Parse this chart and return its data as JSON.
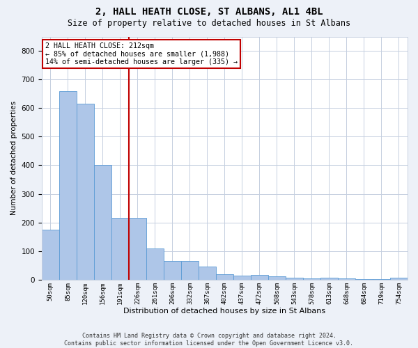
{
  "title": "2, HALL HEATH CLOSE, ST ALBANS, AL1 4BL",
  "subtitle": "Size of property relative to detached houses in St Albans",
  "xlabel": "Distribution of detached houses by size in St Albans",
  "ylabel": "Number of detached properties",
  "categories": [
    "50sqm",
    "85sqm",
    "120sqm",
    "156sqm",
    "191sqm",
    "226sqm",
    "261sqm",
    "296sqm",
    "332sqm",
    "367sqm",
    "402sqm",
    "437sqm",
    "472sqm",
    "508sqm",
    "543sqm",
    "578sqm",
    "613sqm",
    "648sqm",
    "684sqm",
    "719sqm",
    "754sqm"
  ],
  "values": [
    175,
    660,
    615,
    400,
    217,
    217,
    110,
    65,
    65,
    45,
    20,
    15,
    18,
    13,
    8,
    5,
    8,
    5,
    2,
    2,
    6
  ],
  "bar_color": "#aec6e8",
  "bar_edge_color": "#5b9bd5",
  "vline_x": 4.5,
  "vline_color": "#c00000",
  "annotation_text": "2 HALL HEATH CLOSE: 212sqm\n← 85% of detached houses are smaller (1,988)\n14% of semi-detached houses are larger (335) →",
  "annotation_box_edgecolor": "#c00000",
  "ylim": [
    0,
    850
  ],
  "yticks": [
    0,
    100,
    200,
    300,
    400,
    500,
    600,
    700,
    800
  ],
  "footer1": "Contains HM Land Registry data © Crown copyright and database right 2024.",
  "footer2": "Contains public sector information licensed under the Open Government Licence v3.0.",
  "bg_color": "#edf1f8",
  "plot_bg_color": "#ffffff",
  "grid_color": "#c5cfe0"
}
